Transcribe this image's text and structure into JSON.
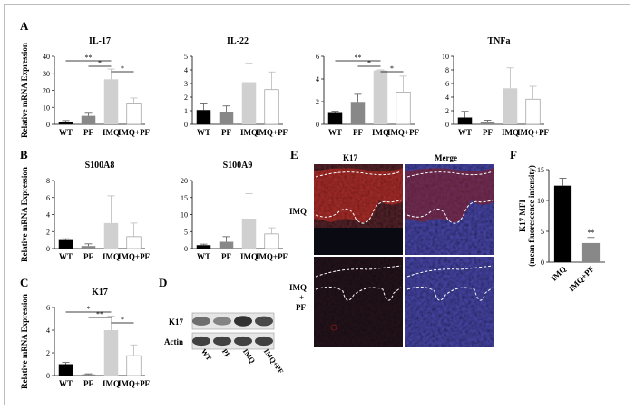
{
  "panels": {
    "A": {
      "letter": "A"
    },
    "B": {
      "letter": "B"
    },
    "C": {
      "letter": "C"
    },
    "D": {
      "letter": "D"
    },
    "E": {
      "letter": "E"
    },
    "F": {
      "letter": "F"
    }
  },
  "chart_data": [
    {
      "type": "bar",
      "panel": "A",
      "title": "IL-17",
      "ylabel": "Relative mRNA Expression",
      "categories": [
        "WT",
        "PF",
        "IMQ",
        "IMQ+PF"
      ],
      "values": [
        1.5,
        5,
        26.5,
        12
      ],
      "errors": [
        0.7,
        1.5,
        6,
        3.5
      ],
      "colors": [
        "#000000",
        "#888888",
        "#d0d0d0",
        "#ffffff"
      ],
      "ylim": [
        0,
        40
      ],
      "yticks": [
        "0",
        "10",
        "20",
        "30",
        "40"
      ],
      "significance": [
        {
          "from": 0,
          "to": 2,
          "label": "**"
        },
        {
          "from": 1,
          "to": 2,
          "label": "*"
        },
        {
          "from": 2,
          "to": 3,
          "label": "*"
        }
      ]
    },
    {
      "type": "bar",
      "panel": "A",
      "title": "IL-22",
      "ylabel": "",
      "categories": [
        "WT",
        "PF",
        "IMQ",
        "IMQ+PF"
      ],
      "values": [
        1.05,
        0.9,
        3.1,
        2.55
      ],
      "errors": [
        0.45,
        0.45,
        1.35,
        1.3
      ],
      "colors": [
        "#000000",
        "#888888",
        "#d0d0d0",
        "#ffffff"
      ],
      "ylim": [
        0,
        5
      ],
      "yticks": [
        "0",
        "1",
        "2",
        "3",
        "4",
        "5"
      ],
      "significance": []
    },
    {
      "type": "bar",
      "panel": "A",
      "title": "",
      "ylabel": "",
      "categories": [
        "WT",
        "PF",
        "IMQ",
        "IMQ+PF"
      ],
      "values": [
        1.0,
        1.9,
        4.75,
        2.85
      ],
      "errors": [
        0.15,
        0.75,
        0.05,
        1.4
      ],
      "colors": [
        "#000000",
        "#888888",
        "#d0d0d0",
        "#ffffff"
      ],
      "ylim": [
        0,
        6
      ],
      "yticks": [
        "0",
        "2",
        "4",
        "6"
      ],
      "significance": [
        {
          "from": 0,
          "to": 2,
          "label": "**"
        },
        {
          "from": 1,
          "to": 2,
          "label": "*"
        },
        {
          "from": 2,
          "to": 3,
          "label": "*"
        }
      ]
    },
    {
      "type": "bar",
      "panel": "A",
      "title": "TNFa",
      "ylabel": "",
      "categories": [
        "WT",
        "PF",
        "IMQ",
        "IMQ+PF"
      ],
      "values": [
        1.0,
        0.4,
        5.3,
        3.7
      ],
      "errors": [
        0.9,
        0.2,
        3.0,
        1.9
      ],
      "colors": [
        "#000000",
        "#888888",
        "#d0d0d0",
        "#ffffff"
      ],
      "ylim": [
        0,
        10
      ],
      "yticks": [
        "0",
        "2",
        "4",
        "6",
        "8",
        "10"
      ],
      "significance": []
    },
    {
      "type": "bar",
      "panel": "B",
      "title": "S100A8",
      "ylabel": "Relative mRNA Expression",
      "categories": [
        "WT",
        "PF",
        "IMQ",
        "IMQ+PF"
      ],
      "values": [
        1.0,
        0.3,
        3.0,
        1.4
      ],
      "errors": [
        0.15,
        0.25,
        3.2,
        1.6
      ],
      "colors": [
        "#000000",
        "#888888",
        "#d0d0d0",
        "#ffffff"
      ],
      "ylim": [
        0,
        8
      ],
      "yticks": [
        "0",
        "2",
        "4",
        "6",
        "8"
      ],
      "significance": []
    },
    {
      "type": "bar",
      "panel": "B",
      "title": "S100A9",
      "ylabel": "",
      "categories": [
        "WT",
        "PF",
        "IMQ",
        "IMQ+PF"
      ],
      "values": [
        1.0,
        2.0,
        8.8,
        4.3
      ],
      "errors": [
        0.3,
        1.5,
        7.3,
        1.8
      ],
      "colors": [
        "#000000",
        "#888888",
        "#d0d0d0",
        "#ffffff"
      ],
      "ylim": [
        0,
        20
      ],
      "yticks": [
        "0",
        "5",
        "10",
        "15",
        "20"
      ],
      "significance": []
    },
    {
      "type": "bar",
      "panel": "C",
      "title": "K17",
      "ylabel": "Relative mRNA Expression",
      "categories": [
        "WT",
        "PF",
        "IMQ",
        "IMQ+PF"
      ],
      "values": [
        1.0,
        0.1,
        4.0,
        1.75
      ],
      "errors": [
        0.15,
        0.05,
        1.25,
        0.95
      ],
      "colors": [
        "#000000",
        "#888888",
        "#d0d0d0",
        "#ffffff"
      ],
      "ylim": [
        0,
        6
      ],
      "yticks": [
        "0",
        "2",
        "4",
        "6"
      ],
      "significance": [
        {
          "from": 0,
          "to": 2,
          "label": "*"
        },
        {
          "from": 1,
          "to": 2,
          "label": "**"
        },
        {
          "from": 2,
          "to": 3,
          "label": "*"
        }
      ]
    },
    {
      "type": "bar",
      "panel": "F",
      "title": "",
      "ylabel": "K17 MFI\n(mean fluorescence intensity)",
      "categories": [
        "IMQ",
        "IMQ+PF"
      ],
      "values": [
        12.4,
        3.1
      ],
      "errors": [
        1.2,
        0.9
      ],
      "colors": [
        "#000000",
        "#888888"
      ],
      "ylim": [
        0,
        15
      ],
      "yticks": [
        "0",
        "5",
        "10",
        "15"
      ],
      "significance": [],
      "annotations": [
        {
          "index": 1,
          "label": "**"
        }
      ]
    }
  ],
  "blot": {
    "rows": [
      "K17",
      "Actin"
    ],
    "lanes": [
      "WT",
      "PF",
      "IMQ",
      "IMQ+PF"
    ],
    "k17_intensity": [
      0.45,
      0.3,
      0.85,
      0.7
    ],
    "actin_intensity": [
      0.75,
      0.75,
      0.75,
      0.75
    ]
  },
  "micrographs": {
    "columns": [
      "K17",
      "Merge"
    ],
    "rows": [
      "IMQ",
      "IMQ\n+\nPF"
    ],
    "colors": {
      "k17": "#8a1a14",
      "dapi": "#2a3aa0",
      "background": "#0a0a12"
    }
  }
}
